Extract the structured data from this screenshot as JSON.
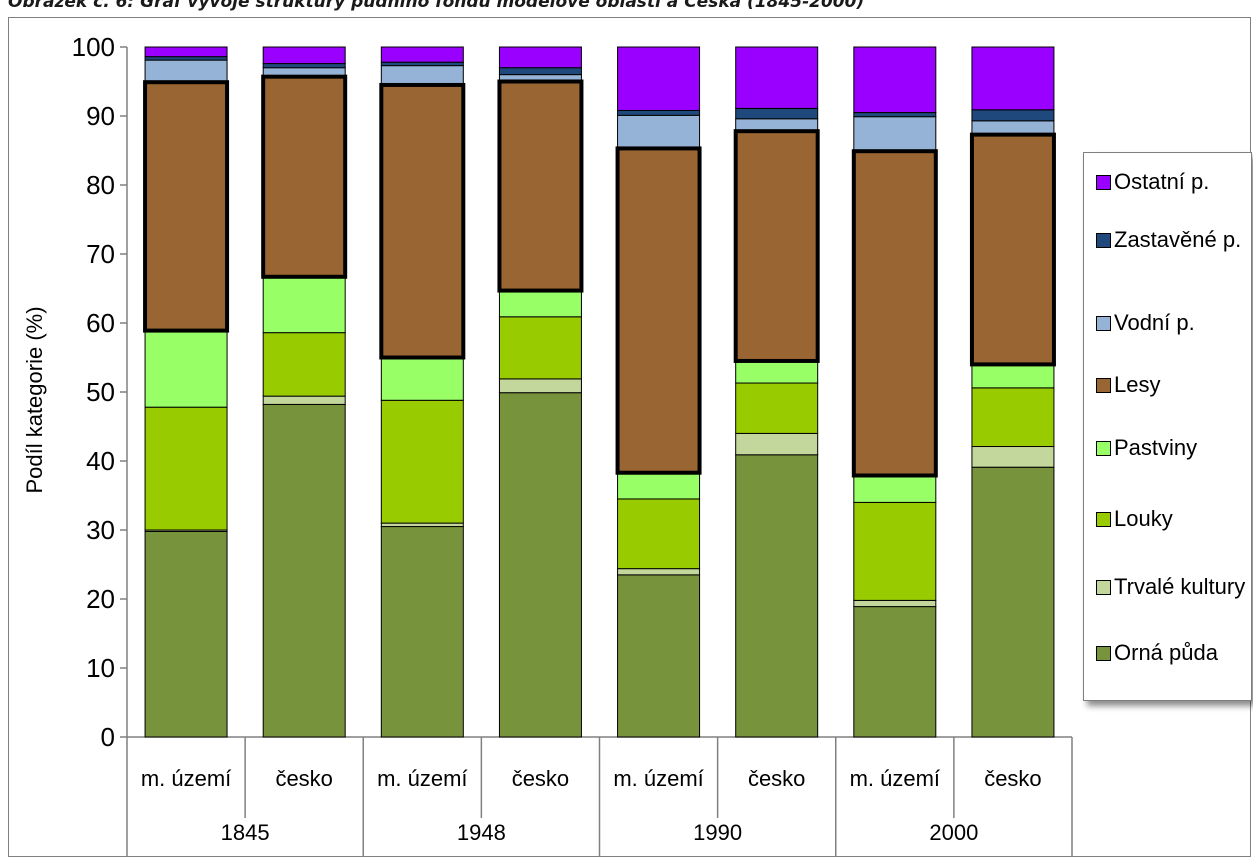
{
  "caption": "Obrázek č. 6: Graf vývoje struktury půdního fondu modelové oblasti a Česka (1845-2000)",
  "chart_data": {
    "type": "bar",
    "stacked": true,
    "ylabel": "Podíl kategorie (%)",
    "ylim": [
      0,
      100
    ],
    "yticks": [
      0,
      10,
      20,
      30,
      40,
      50,
      60,
      70,
      80,
      90,
      100
    ],
    "grid": false,
    "legend_position": "right",
    "categories": [
      "m. území",
      "česko",
      "m. území",
      "česko",
      "m. území",
      "česko",
      "m. území",
      "česko"
    ],
    "groups": [
      {
        "label": "1845",
        "span": 2
      },
      {
        "label": "1948",
        "span": 2
      },
      {
        "label": "1990",
        "span": 2
      },
      {
        "label": "2000",
        "span": 2
      }
    ],
    "series": [
      {
        "name": "Orná půda",
        "color": "#77933c",
        "values": [
          29.8,
          48.2,
          30.5,
          49.9,
          23.5,
          40.9,
          18.9,
          39.1
        ]
      },
      {
        "name": "Trvalé kultury",
        "color": "#c3d69b",
        "values": [
          0.2,
          1.2,
          0.5,
          2.0,
          0.9,
          3.1,
          0.9,
          3.0
        ]
      },
      {
        "name": "Louky",
        "color": "#99cc00",
        "values": [
          17.8,
          9.2,
          17.8,
          9.0,
          10.1,
          7.3,
          14.2,
          8.5
        ]
      },
      {
        "name": "Pastviny",
        "color": "#99ff66",
        "values": [
          11.1,
          8.1,
          6.2,
          3.8,
          3.8,
          3.2,
          3.9,
          3.4
        ]
      },
      {
        "name": "Lesy",
        "color": "#996633",
        "values": [
          36.0,
          29.0,
          39.5,
          30.3,
          47.0,
          33.3,
          47.0,
          33.3
        ]
      },
      {
        "name": "Vodní p.",
        "color": "#95b3d7",
        "values": [
          3.2,
          1.3,
          2.8,
          1.0,
          4.8,
          1.8,
          5.0,
          2.0
        ]
      },
      {
        "name": "Zastavěné p.",
        "color": "#1f497d",
        "values": [
          0.5,
          0.6,
          0.5,
          1.0,
          0.7,
          1.5,
          0.6,
          1.6
        ]
      },
      {
        "name": "Ostatní p.",
        "color": "#9900ff",
        "values": [
          1.4,
          2.4,
          2.2,
          3.0,
          9.2,
          8.9,
          9.5,
          9.1
        ]
      }
    ],
    "legend_order": [
      "Ostatní p.",
      "Zastavěné p.",
      "Vodní p.",
      "Lesy",
      "Pastviny",
      "Louky",
      "Trvalé kultury",
      "Orná půda"
    ],
    "emphasized_series": "Lesy"
  }
}
